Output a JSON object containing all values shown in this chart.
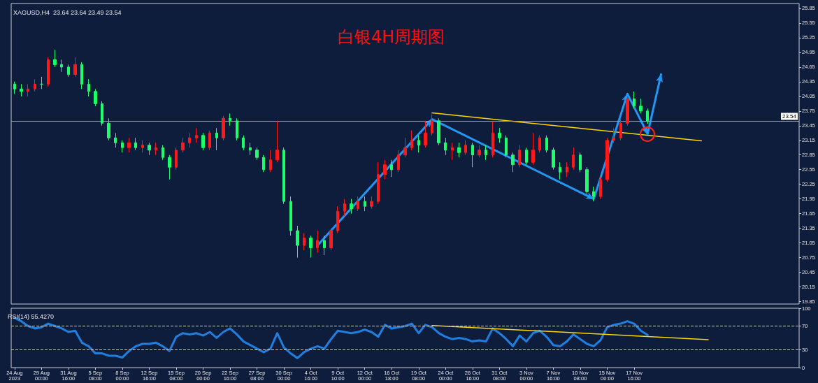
{
  "chart_data": [
    {
      "type": "candlestick",
      "title": "白银4H周期图",
      "subtitle": "XAGUSD,H4  23.64 23.64 23.49 23.54",
      "categories": [
        null,
        null,
        null,
        null,
        null,
        null,
        null,
        null,
        null,
        null,
        null,
        null,
        null,
        null,
        null,
        null,
        null,
        null,
        null,
        null,
        null,
        null,
        null,
        null,
        null,
        null,
        null,
        null,
        null,
        null,
        null,
        null,
        null,
        null,
        null,
        null,
        null,
        null,
        null,
        null,
        null,
        null,
        null,
        null,
        null,
        null,
        null,
        null,
        null,
        null,
        null,
        null,
        null,
        null,
        null,
        null,
        null,
        null,
        null,
        null,
        null,
        null,
        null,
        null,
        null,
        null,
        null,
        null,
        null,
        null,
        null,
        null,
        null,
        null,
        null,
        null,
        null,
        null,
        null,
        null,
        null,
        null,
        null,
        null,
        null,
        null,
        null,
        null,
        null,
        null,
        null,
        null,
        null,
        null,
        null,
        null,
        null,
        null,
        null,
        null,
        null,
        null,
        null,
        null,
        null,
        null,
        null,
        null,
        null,
        null,
        null,
        null,
        null,
        null,
        null,
        null,
        null
      ],
      "tick_labels": "y",
      "colors": [
        "#1aff6a",
        "#1aff6a",
        "#ff1a1a",
        "#ff1a1a",
        "#1aff6a",
        "#ff1a1a",
        "#1aff6a",
        "#1aff6a",
        "#1aff6a",
        "#ff1a1a",
        "#1aff6a",
        "#1aff6a",
        "#1aff6a",
        "#1aff6a",
        "#1aff6a",
        "#1aff6a",
        "#1aff6a",
        "#ff1a1a",
        "#1aff6a",
        "#ff1a1a",
        "#1aff6a",
        "#ff1a1a",
        "#1aff6a",
        "#1aff6a",
        "#ff1a1a",
        "#ff1a1a",
        "#ff1a1a",
        "#ff1a1a",
        "#1aff6a",
        "#ff1a1a",
        "#1aff6a",
        "#ff1a1a",
        "#1aff6a",
        "#1aff6a",
        "#1aff6a",
        "#1aff6a",
        "#1aff6a",
        "#1aff6a",
        "#ff1a1a",
        "#ff1a1a",
        "#1aff6a",
        "#1aff6a",
        "#1aff6a",
        "#ff1a1a",
        "#1aff6a",
        "#ff1a1a",
        "#1aff6a",
        "#ff1a1a",
        "#ff1a1a",
        "#ff1a1a",
        "#1aff6a",
        "#ff1a1a",
        "#1aff6a",
        "#ff1a1a",
        "#ff1a1a",
        "#ff1a1a",
        "#1aff6a",
        "#ff1a1a",
        "#ff1a1a",
        "#ff1a1a",
        "#1aff6a",
        "#ff1a1a",
        "#ff1a1a",
        "#1aff6a",
        "#1aff6a",
        "#ff1a1a",
        "#1aff6a",
        "#ff1a1a",
        "#1aff6a",
        "#ff1a1a",
        "#1aff6a",
        "#ff1a1a",
        "#1aff6a",
        "#1aff6a",
        "#1aff6a",
        "#ff1a1a",
        "#1aff6a",
        "#ff1a1a",
        "#ff1a1a",
        "#1aff6a",
        "#1aff6a",
        "#1aff6a",
        "#ff1a1a",
        "#ff1a1a",
        "#1aff6a",
        "#1aff6a",
        "#1aff6a",
        "#ff1a1a",
        "#ff1a1a",
        "#ff1a1a",
        "#ff1a1a",
        "#ff1a1a",
        "#1aff6a",
        "#1aff6a",
        "#1aff6a",
        null,
        null,
        null,
        null,
        null,
        null,
        null,
        null,
        null,
        null,
        null,
        null,
        null,
        null,
        null,
        null,
        null,
        null,
        null,
        null,
        null,
        null
      ],
      "ohlc": [
        [
          24.3,
          24.35,
          24.1,
          24.2
        ],
        [
          24.2,
          24.3,
          24.05,
          24.15
        ],
        [
          24.15,
          24.3,
          24.05,
          24.2
        ],
        [
          24.2,
          24.4,
          24.15,
          24.3
        ],
        [
          24.3,
          24.45,
          24.2,
          24.3
        ],
        [
          24.3,
          24.85,
          24.25,
          24.8
        ],
        [
          24.8,
          25.0,
          24.65,
          24.7
        ],
        [
          24.7,
          24.8,
          24.55,
          24.65
        ],
        [
          24.65,
          24.7,
          24.45,
          24.5
        ],
        [
          24.5,
          24.85,
          24.45,
          24.7
        ],
        [
          24.7,
          24.75,
          24.2,
          24.3
        ],
        [
          24.3,
          24.4,
          24.05,
          24.15
        ],
        [
          24.15,
          24.2,
          23.85,
          23.9
        ],
        [
          23.9,
          23.95,
          23.45,
          23.5
        ],
        [
          23.5,
          23.6,
          23.15,
          23.2
        ],
        [
          23.2,
          23.3,
          23.0,
          23.1
        ],
        [
          23.1,
          23.15,
          22.9,
          23.0
        ],
        [
          23.0,
          23.2,
          22.9,
          23.1
        ],
        [
          23.1,
          23.2,
          22.95,
          23.0
        ],
        [
          23.0,
          23.15,
          22.9,
          23.05
        ],
        [
          23.05,
          23.1,
          22.85,
          22.95
        ],
        [
          22.95,
          23.1,
          22.85,
          23.0
        ],
        [
          23.0,
          23.05,
          22.75,
          22.8
        ],
        [
          22.8,
          22.85,
          22.35,
          22.6
        ],
        [
          22.6,
          23.0,
          22.55,
          22.95
        ],
        [
          22.95,
          23.2,
          22.9,
          23.1
        ],
        [
          23.1,
          23.3,
          23.0,
          23.2
        ],
        [
          23.2,
          23.4,
          23.1,
          23.25
        ],
        [
          23.25,
          23.3,
          22.95,
          23.0
        ],
        [
          23.0,
          23.35,
          22.95,
          23.3
        ],
        [
          23.3,
          23.4,
          22.95,
          23.2
        ],
        [
          23.2,
          23.65,
          23.15,
          23.6
        ],
        [
          23.6,
          23.7,
          23.45,
          23.55
        ],
        [
          23.55,
          23.6,
          23.15,
          23.2
        ],
        [
          23.2,
          23.25,
          22.95,
          23.0
        ],
        [
          23.0,
          23.1,
          22.85,
          22.95
        ],
        [
          22.95,
          23.0,
          22.75,
          22.8
        ],
        [
          22.8,
          22.85,
          22.5,
          22.55
        ],
        [
          22.55,
          22.95,
          22.5,
          22.75
        ],
        [
          22.75,
          23.55,
          22.7,
          22.95
        ],
        [
          22.95,
          23.0,
          21.85,
          21.9
        ],
        [
          21.9,
          22.0,
          21.2,
          21.3
        ],
        [
          21.3,
          21.4,
          20.75,
          21.0
        ],
        [
          21.0,
          21.25,
          20.9,
          21.15
        ],
        [
          21.15,
          21.2,
          20.75,
          20.95
        ],
        [
          20.95,
          21.3,
          20.85,
          21.1
        ],
        [
          21.1,
          21.2,
          20.8,
          20.95
        ],
        [
          20.95,
          21.35,
          20.9,
          21.3
        ],
        [
          21.3,
          21.8,
          21.25,
          21.7
        ],
        [
          21.7,
          21.95,
          21.6,
          21.85
        ],
        [
          21.85,
          21.95,
          21.65,
          21.75
        ],
        [
          21.75,
          22.0,
          21.7,
          21.9
        ],
        [
          21.9,
          22.0,
          21.7,
          21.8
        ],
        [
          21.8,
          22.0,
          21.75,
          21.9
        ],
        [
          21.9,
          22.7,
          21.85,
          22.45
        ],
        [
          22.45,
          22.75,
          22.35,
          22.65
        ],
        [
          22.65,
          22.75,
          22.4,
          22.55
        ],
        [
          22.55,
          22.95,
          22.5,
          22.85
        ],
        [
          22.85,
          23.2,
          22.8,
          23.0
        ],
        [
          23.0,
          23.35,
          22.95,
          23.15
        ],
        [
          23.15,
          23.25,
          22.9,
          23.05
        ],
        [
          23.05,
          23.55,
          23.0,
          23.3
        ],
        [
          23.3,
          23.68,
          23.25,
          23.55
        ],
        [
          23.55,
          23.6,
          23.05,
          23.1
        ],
        [
          23.1,
          23.2,
          22.85,
          22.95
        ],
        [
          22.95,
          23.1,
          22.75,
          23.0
        ],
        [
          23.0,
          23.1,
          22.8,
          22.9
        ],
        [
          22.9,
          23.15,
          22.85,
          23.05
        ],
        [
          23.05,
          23.1,
          22.6,
          22.85
        ],
        [
          22.85,
          23.05,
          22.8,
          22.95
        ],
        [
          22.95,
          23.05,
          22.75,
          22.85
        ],
        [
          22.85,
          23.54,
          22.8,
          23.3
        ],
        [
          23.3,
          23.4,
          23.1,
          23.2
        ],
        [
          23.2,
          23.25,
          22.8,
          22.85
        ],
        [
          22.85,
          22.9,
          22.5,
          22.65
        ],
        [
          22.65,
          23.05,
          22.6,
          22.95
        ],
        [
          22.95,
          23.0,
          22.65,
          22.7
        ],
        [
          22.7,
          23.3,
          22.65,
          22.95
        ],
        [
          22.95,
          23.25,
          22.9,
          23.2
        ],
        [
          23.2,
          23.25,
          22.9,
          22.95
        ],
        [
          22.95,
          23.0,
          22.55,
          22.6
        ],
        [
          22.6,
          22.7,
          22.35,
          22.5
        ],
        [
          22.5,
          22.7,
          22.4,
          22.6
        ],
        [
          22.6,
          23.0,
          22.55,
          22.85
        ],
        [
          22.85,
          22.9,
          22.5,
          22.55
        ],
        [
          22.55,
          22.6,
          22.05,
          22.1
        ],
        [
          22.1,
          22.2,
          21.9,
          22.0
        ],
        [
          22.0,
          22.4,
          21.95,
          22.35
        ],
        [
          22.35,
          23.2,
          22.3,
          23.15
        ],
        [
          23.15,
          23.4,
          23.1,
          23.2
        ],
        [
          23.2,
          23.6,
          23.15,
          23.5
        ],
        [
          23.5,
          24.05,
          23.45,
          24.0
        ],
        [
          24.0,
          24.15,
          23.8,
          23.85
        ],
        [
          23.85,
          24.0,
          23.7,
          23.75
        ],
        [
          23.75,
          23.8,
          23.49,
          23.54
        ],
        null,
        null,
        null,
        null,
        null,
        null,
        null,
        null,
        null,
        null,
        null,
        null,
        null,
        null,
        null,
        null,
        null,
        null,
        null,
        null,
        null,
        null
      ],
      "series": [
        {
          "type": "line",
          "color": "#ffd700",
          "values": [
            null,
            null,
            null,
            null,
            null,
            null,
            null,
            null,
            null,
            null,
            null,
            null,
            null,
            null,
            null,
            null,
            null,
            null,
            null,
            null,
            null,
            null,
            null,
            null,
            null,
            null,
            null,
            null,
            null,
            null,
            null,
            null,
            null,
            null,
            null,
            null,
            null,
            null,
            null,
            null,
            null,
            null,
            null,
            null,
            null,
            null,
            null,
            null,
            null,
            null,
            null,
            null,
            null,
            null,
            null,
            null,
            null,
            null,
            null,
            null,
            null,
            null,
            23.71,
            null,
            null,
            null,
            null,
            null,
            null,
            null,
            null,
            null,
            null,
            null,
            null,
            null,
            null,
            null,
            null,
            null,
            null,
            null,
            null,
            null,
            null,
            null,
            null,
            null,
            null,
            null,
            null,
            null,
            null,
            null,
            null,
            null,
            null,
            null,
            null,
            null,
            null,
            null,
            23.14,
            null,
            null,
            null,
            null,
            null,
            null,
            null,
            null,
            null,
            null,
            null,
            null,
            null,
            null
          ]
        },
        {
          "type": "line",
          "color": "#2196f3",
          "values": [
            null,
            null,
            null,
            null,
            null,
            null,
            null,
            null,
            null,
            null,
            null,
            null,
            null,
            null,
            null,
            null,
            null,
            null,
            null,
            null,
            null,
            null,
            null,
            null,
            null,
            null,
            null,
            null,
            null,
            null,
            null,
            null,
            null,
            null,
            null,
            null,
            null,
            null,
            null,
            null,
            null,
            null,
            null,
            null,
            null,
            21.0,
            null,
            null,
            null,
            null,
            null,
            null,
            null,
            null,
            null,
            null,
            null,
            null,
            null,
            null,
            null,
            null,
            23.58,
            null,
            null,
            null,
            null,
            null,
            null,
            null,
            null,
            null,
            null,
            null,
            null,
            null,
            null,
            null,
            null,
            null,
            null,
            null,
            null,
            null,
            null,
            null,
            21.95,
            null,
            null,
            null,
            null,
            24.1,
            null,
            null,
            23.28,
            null,
            24.5,
            null,
            null,
            null,
            null,
            null,
            null,
            null,
            null,
            null,
            null,
            null,
            null,
            null,
            null,
            null,
            null,
            null,
            null,
            null,
            null
          ]
        }
      ],
      "ylim": [
        19.8,
        25.95
      ],
      "yticks": [
        19.85,
        20.15,
        20.45,
        20.75,
        21.05,
        21.35,
        21.65,
        21.95,
        22.25,
        22.55,
        22.85,
        23.15,
        23.45,
        23.75,
        24.05,
        24.35,
        24.65,
        24.95,
        25.25,
        25.55,
        25.85
      ],
      "ref_lines": [
        {
          "axis": "y",
          "value": 23.54,
          "label": "23.54",
          "color": "#9aa0aa"
        }
      ],
      "grid": false
    },
    {
      "type": "line",
      "title": "RSI(14) 55.4270",
      "categories": [
        "24 Aug 2023",
        null,
        null,
        null,
        "29 Aug 00:00",
        null,
        null,
        null,
        "31 Aug 16:00",
        null,
        null,
        null,
        "5 Sep 08:00",
        null,
        null,
        null,
        "8 Sep 00:00",
        null,
        null,
        null,
        "12 Sep 16:00",
        null,
        null,
        null,
        "15 Sep 08:00",
        null,
        null,
        null,
        "20 Sep 00:00",
        null,
        null,
        null,
        "22 Sep 16:00",
        null,
        null,
        null,
        "27 Sep 08:00",
        null,
        null,
        null,
        "30 Sep 00:00",
        null,
        null,
        null,
        "4 Oct 16:00",
        null,
        null,
        null,
        "9 Oct 10:00",
        null,
        null,
        null,
        "12 Oct 00:00",
        null,
        null,
        null,
        "16 Oct 18:00",
        null,
        null,
        null,
        "19 Oct 08:00",
        null,
        null,
        null,
        "24 Oct 00:00",
        null,
        null,
        null,
        "26 Oct 16:00",
        null,
        null,
        null,
        "31 Oct 08:00",
        null,
        null,
        null,
        "3 Nov 00:00",
        null,
        null,
        null,
        "7 Nov 16:00",
        null,
        null,
        null,
        "10 Nov 08:00",
        null,
        null,
        null,
        "15 Nov 00:00",
        null,
        null,
        null,
        "17 Nov 16:00",
        null,
        null,
        null,
        null,
        null,
        null,
        null,
        null,
        null,
        null,
        null,
        null,
        null,
        null,
        null,
        null,
        null,
        null,
        null,
        null,
        null,
        null,
        null,
        null
      ],
      "series": [
        {
          "color": "#1e7fe0",
          "values": [
            84,
            78,
            70,
            66,
            68,
            74,
            70,
            66,
            60,
            62,
            42,
            36,
            24,
            24,
            20,
            20,
            17,
            28,
            36,
            40,
            40,
            42,
            36,
            28,
            52,
            58,
            56,
            58,
            54,
            60,
            50,
            60,
            66,
            56,
            44,
            38,
            32,
            26,
            32,
            58,
            34,
            24,
            16,
            26,
            32,
            36,
            32,
            48,
            62,
            60,
            58,
            60,
            64,
            60,
            52,
            72,
            66,
            68,
            70,
            74,
            58,
            72,
            68,
            58,
            52,
            48,
            50,
            48,
            44,
            46,
            44,
            66,
            58,
            48,
            36,
            54,
            44,
            58,
            62,
            52,
            38,
            36,
            44,
            56,
            48,
            40,
            36,
            46,
            68,
            72,
            74,
            78,
            74,
            62,
            55,
            null,
            null,
            null,
            null,
            null,
            null,
            null,
            null,
            null,
            null,
            null,
            null,
            null,
            null,
            null,
            null,
            null,
            null,
            null,
            null,
            null,
            null
          ]
        },
        {
          "type": "line",
          "color": "#ffd700",
          "values": [
            null,
            null,
            null,
            null,
            null,
            null,
            null,
            null,
            null,
            null,
            null,
            null,
            null,
            null,
            null,
            null,
            null,
            null,
            null,
            null,
            null,
            null,
            null,
            null,
            null,
            null,
            null,
            null,
            null,
            null,
            null,
            null,
            null,
            null,
            null,
            null,
            null,
            null,
            null,
            null,
            null,
            null,
            null,
            null,
            null,
            null,
            null,
            null,
            null,
            null,
            null,
            null,
            null,
            null,
            null,
            null,
            null,
            null,
            null,
            null,
            null,
            null,
            71,
            null,
            null,
            null,
            null,
            null,
            null,
            null,
            null,
            null,
            null,
            null,
            null,
            null,
            null,
            null,
            null,
            null,
            null,
            null,
            null,
            null,
            null,
            null,
            null,
            null,
            null,
            null,
            null,
            null,
            null,
            null,
            null,
            null,
            null,
            null,
            null,
            null,
            null,
            null,
            null,
            47,
            null,
            null,
            null,
            null,
            null,
            null,
            null,
            null,
            null,
            null,
            null,
            null,
            null
          ]
        }
      ],
      "ylim": [
        0,
        100
      ],
      "yticks": [
        0,
        30,
        70,
        100
      ],
      "ref_lines": [
        {
          "axis": "y",
          "value": 30,
          "label": null,
          "color": "#c8c8c8",
          "line_style": "dashed"
        },
        {
          "axis": "y",
          "value": 70,
          "label": null,
          "color": "#c8c8c8",
          "line_style": "dashed"
        }
      ],
      "grid": false
    }
  ]
}
